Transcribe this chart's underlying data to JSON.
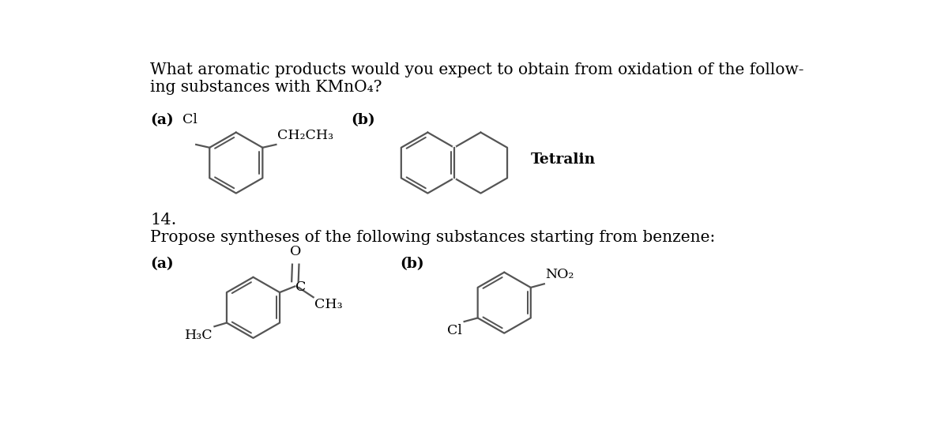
{
  "background_color": "#ffffff",
  "text_color": "#000000",
  "ring_color": "#555555",
  "title_line1": "What aromatic products would you expect to obtain from oxidation of the follow-",
  "title_line2": "ing substances with KMnO₄?",
  "number_14": "14.",
  "propose_text": "Propose syntheses of the following substances starting from benzene:",
  "label_a1": "(a)",
  "label_b1": "(b)",
  "label_a2": "(a)",
  "label_b2": "(b)",
  "tetralin_label": "Tetralin",
  "cl_label": "Cl",
  "ch2ch3_label": "CH₂CH₃",
  "o_label": "O",
  "c_label": "C",
  "ch3_label_a": "CH₃",
  "h3c_label": "H₃C",
  "no2_label": "NO₂",
  "cl_label_b2": "Cl",
  "font_size_title": 14.5,
  "font_size_bold_label": 13.5,
  "font_size_struct": 12.5,
  "font_size_number": 15,
  "lw_ring": 1.6
}
